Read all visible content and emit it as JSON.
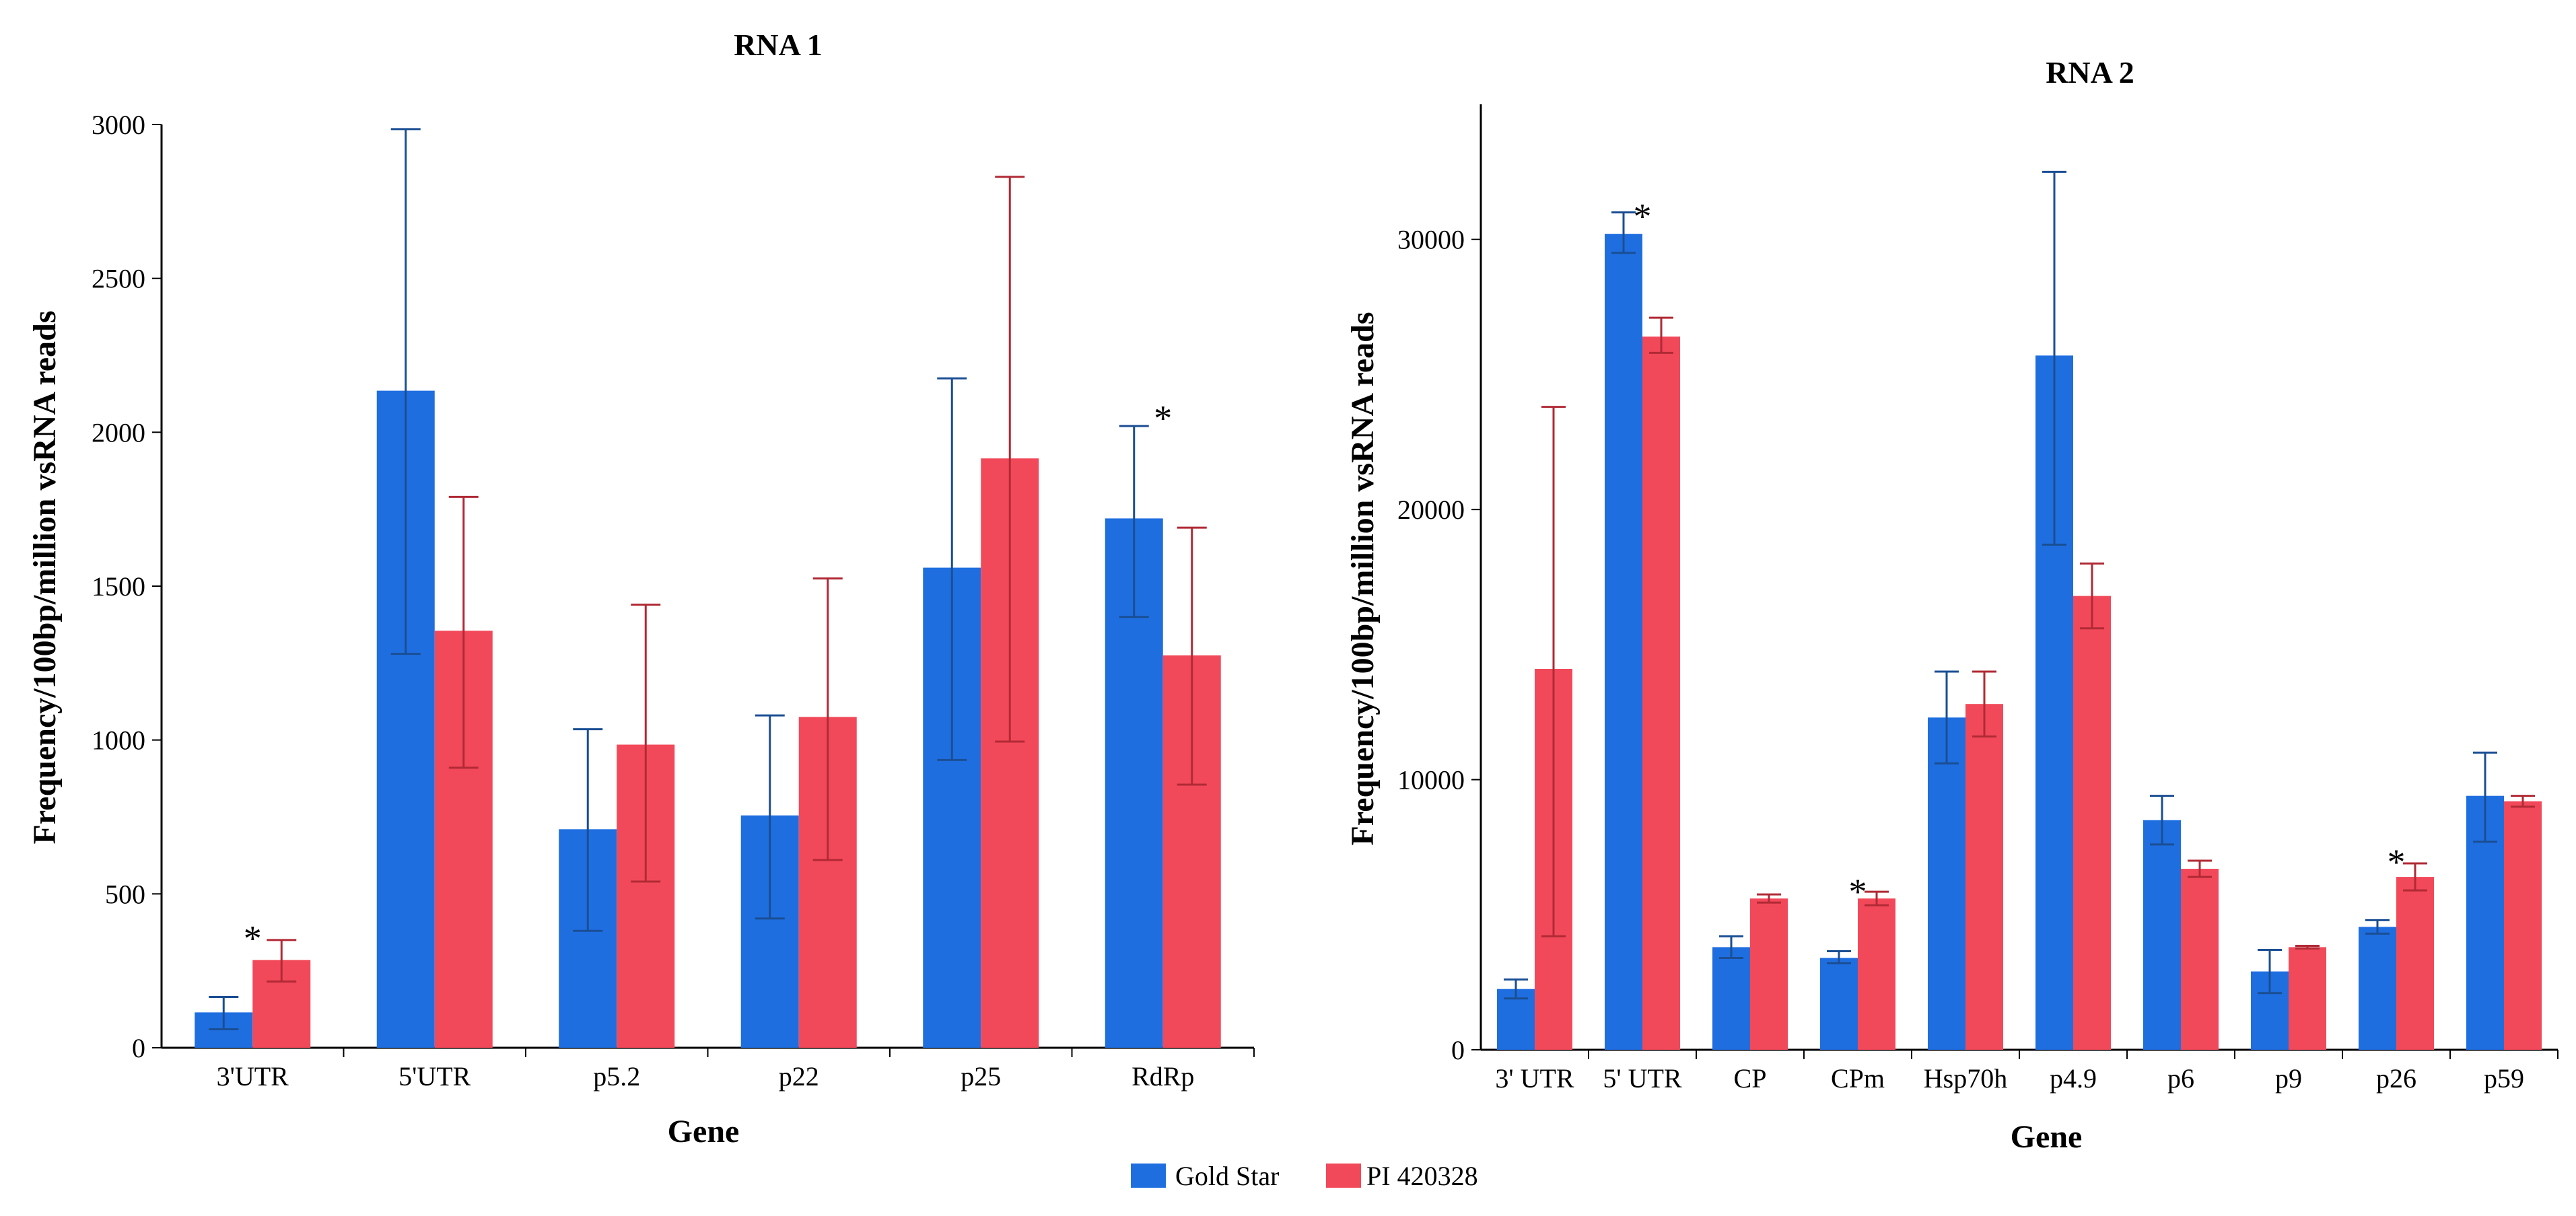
{
  "colors": {
    "gold_star": "#1f6ee0",
    "pi_420328": "#f2495a",
    "gold_star_err": "#1a4e93",
    "pi_420328_err": "#b02a35"
  },
  "legend": [
    {
      "name": "Gold Star",
      "color": "#1f6ee0"
    },
    {
      "name": "PI 420328",
      "color": "#f2495a"
    }
  ],
  "chart_data": [
    {
      "type": "bar",
      "title": "RNA 1",
      "xlabel": "Gene",
      "ylabel": "Frequency/100bp/million vsRNA reads",
      "ylim": [
        0,
        3000
      ],
      "yticks": [
        0,
        500,
        1000,
        1500,
        2000,
        2500,
        3000
      ],
      "ytick_labels": [
        "0",
        "500",
        "1000",
        "1500",
        "2000",
        "2500",
        "3000"
      ],
      "categories": [
        "3'UTR",
        "5'UTR",
        "p5.2",
        "p22",
        "p25",
        "RdRp"
      ],
      "series": [
        {
          "name": "Gold Star",
          "values": [
            115,
            2135,
            710,
            755,
            1560,
            1720
          ],
          "error_low": [
            60,
            1280,
            380,
            420,
            935,
            1400
          ],
          "error_high": [
            165,
            2985,
            1035,
            1080,
            2175,
            2020
          ]
        },
        {
          "name": "PI 420328",
          "values": [
            285,
            1355,
            985,
            1075,
            1915,
            1275
          ],
          "error_low": [
            215,
            910,
            540,
            610,
            995,
            855
          ],
          "error_high": [
            350,
            1790,
            1440,
            1525,
            2830,
            1690
          ]
        }
      ],
      "annotations": [
        {
          "text": "*",
          "category": "3'UTR",
          "y": 395
        },
        {
          "text": "*",
          "category": "RdRp",
          "y": 2085
        }
      ]
    },
    {
      "type": "bar",
      "title": "RNA 2",
      "xlabel": "Gene",
      "ylabel": "Frequency/100bp/million vsRNA reads",
      "ylim": [
        0,
        35000
      ],
      "yticks": [
        0,
        10000,
        20000,
        30000
      ],
      "ytick_labels": [
        "0",
        "10000",
        "20000",
        "30000"
      ],
      "categories": [
        "3' UTR",
        "5' UTR",
        "CP",
        "CPm",
        "Hsp70h",
        "p4.9",
        "p6",
        "p9",
        "p26",
        "p59"
      ],
      "series": [
        {
          "name": "Gold Star",
          "values": [
            2250,
            30200,
            3800,
            3400,
            12300,
            25700,
            8500,
            2900,
            4550,
            9400
          ],
          "error_low": [
            1900,
            29500,
            3400,
            3200,
            10600,
            18700,
            7600,
            2100,
            4300,
            7700
          ],
          "error_high": [
            2600,
            31000,
            4200,
            3650,
            14000,
            32500,
            9400,
            3700,
            4800,
            11000
          ]
        },
        {
          "name": "PI 420328",
          "values": [
            14100,
            26400,
            5600,
            5600,
            12800,
            16800,
            6700,
            3800,
            6400,
            9200
          ],
          "error_low": [
            4200,
            25800,
            5450,
            5350,
            11600,
            15600,
            6400,
            3750,
            5900,
            9000
          ],
          "error_high": [
            23800,
            27100,
            5750,
            5850,
            14000,
            18000,
            7000,
            3850,
            6900,
            9400
          ]
        }
      ],
      "annotations": [
        {
          "text": "*",
          "category": "5' UTR",
          "y": 31300
        },
        {
          "text": "*",
          "category": "CPm",
          "y": 6300
        },
        {
          "text": "*",
          "category": "p26",
          "y": 7400
        }
      ]
    }
  ]
}
